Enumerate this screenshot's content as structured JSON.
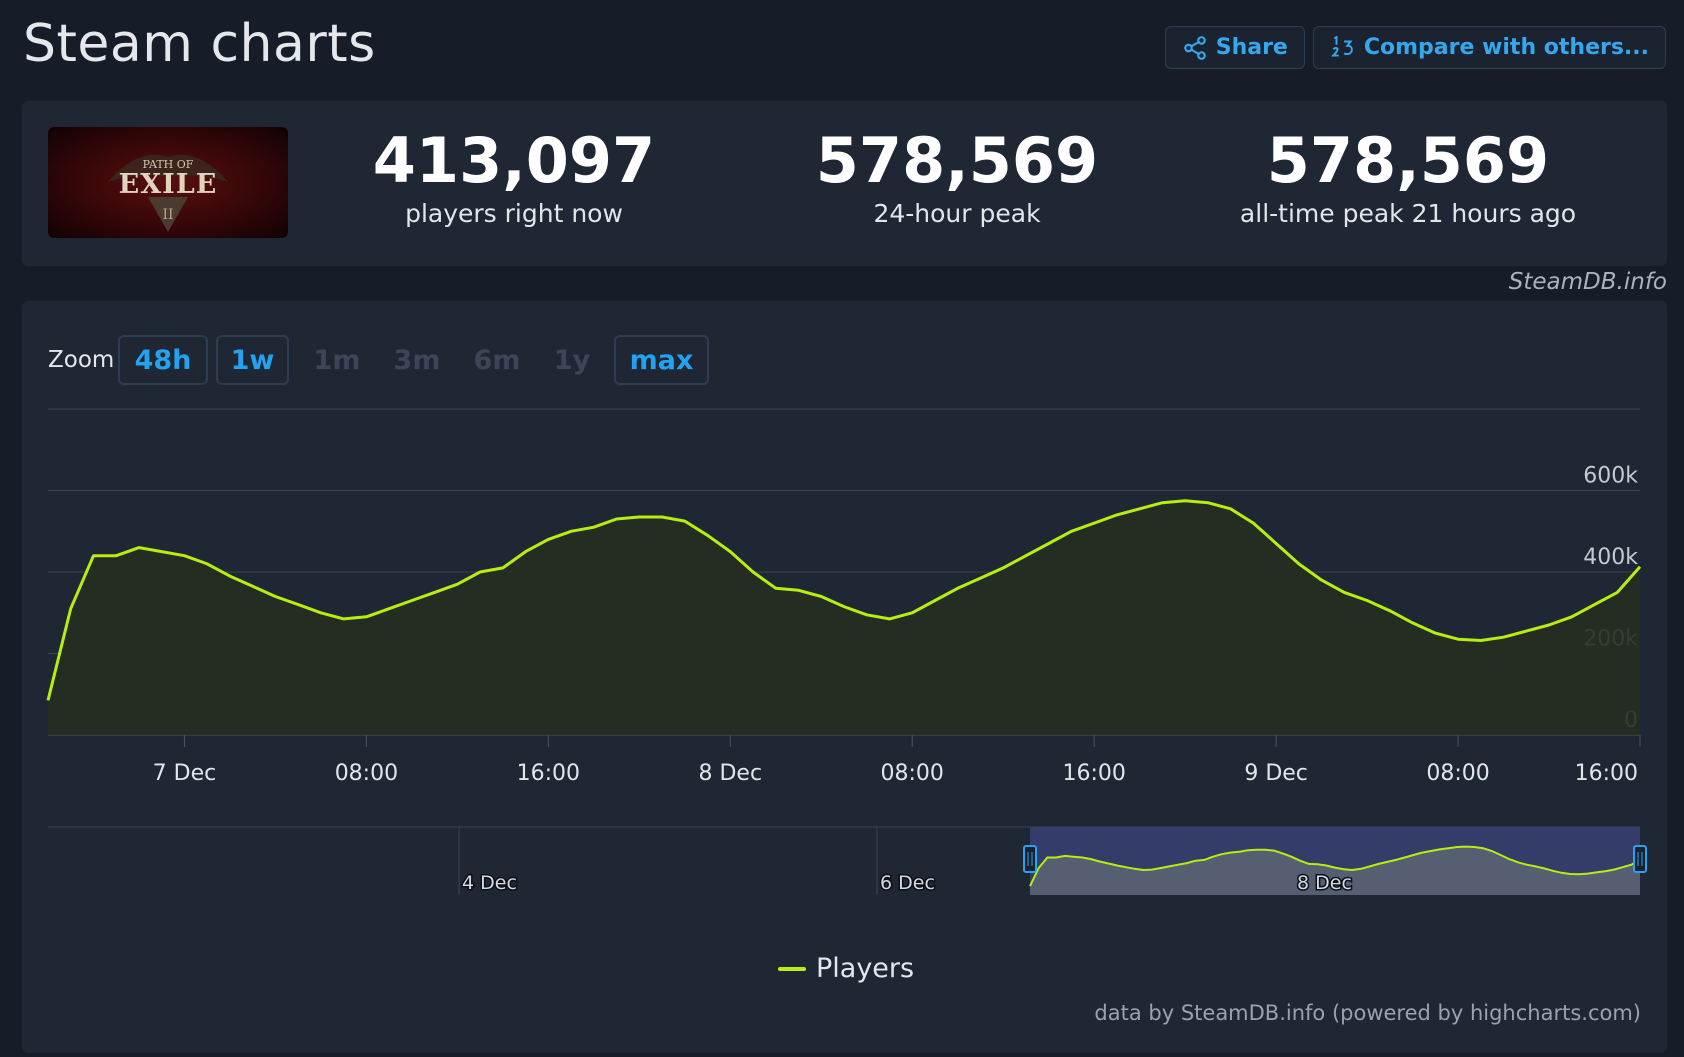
{
  "header": {
    "title": "Steam charts",
    "share_label": "Share",
    "compare_label": "Compare with others..."
  },
  "stats": [
    {
      "value": "413,097",
      "label": "players right now"
    },
    {
      "value": "578,569",
      "label": "24-hour peak"
    },
    {
      "value": "578,569",
      "label": "all-time peak 21 hours ago"
    }
  ],
  "game_logo": {
    "text_top": "PATH OF",
    "text_main": "EXILE",
    "numeral": "II"
  },
  "credit_top": "SteamDB.info",
  "zoom": {
    "label": "Zoom",
    "buttons": [
      {
        "label": "48h",
        "state": "active"
      },
      {
        "label": "1w",
        "state": "active"
      },
      {
        "label": "1m",
        "state": "disabled"
      },
      {
        "label": "3m",
        "state": "disabled"
      },
      {
        "label": "6m",
        "state": "disabled"
      },
      {
        "label": "1y",
        "state": "disabled"
      },
      {
        "label": "max",
        "state": "active"
      }
    ]
  },
  "chart_data": {
    "type": "area",
    "x": [
      0,
      1,
      2,
      3,
      4,
      5,
      6,
      7,
      8,
      9,
      10,
      11,
      12,
      13,
      14,
      15,
      16,
      17,
      18,
      19,
      20,
      21,
      22,
      23,
      24,
      25,
      26,
      27,
      28,
      29,
      30,
      31,
      32,
      33,
      34,
      35,
      36,
      37,
      38,
      39,
      40,
      41,
      42,
      43,
      44,
      45,
      46,
      47,
      48,
      49,
      50,
      51,
      52,
      53,
      54,
      55,
      56,
      57,
      58,
      59,
      60,
      61,
      62,
      63,
      64,
      65,
      66,
      67,
      68,
      69,
      70
    ],
    "x_tick_labels": [
      {
        "x": 6,
        "label": "7 Dec"
      },
      {
        "x": 14,
        "label": "08:00"
      },
      {
        "x": 22,
        "label": "16:00"
      },
      {
        "x": 30,
        "label": "8 Dec"
      },
      {
        "x": 38,
        "label": "08:00"
      },
      {
        "x": 46,
        "label": "16:00"
      },
      {
        "x": 54,
        "label": "9 Dec"
      },
      {
        "x": 62,
        "label": "08:00"
      },
      {
        "x": 70,
        "label": "16:00"
      }
    ],
    "series": [
      {
        "name": "Players",
        "color": "#b6ee10",
        "values": [
          85000,
          310000,
          440000,
          440000,
          460000,
          450000,
          440000,
          420000,
          390000,
          365000,
          340000,
          320000,
          300000,
          285000,
          290000,
          310000,
          330000,
          350000,
          370000,
          400000,
          410000,
          450000,
          480000,
          500000,
          510000,
          530000,
          535000,
          535000,
          525000,
          490000,
          450000,
          400000,
          360000,
          355000,
          340000,
          315000,
          295000,
          285000,
          300000,
          330000,
          360000,
          385000,
          410000,
          440000,
          470000,
          500000,
          520000,
          540000,
          555000,
          570000,
          575000,
          570000,
          555000,
          520000,
          470000,
          420000,
          380000,
          350000,
          330000,
          305000,
          275000,
          250000,
          235000,
          232000,
          240000,
          255000,
          270000,
          290000,
          320000,
          350000,
          413097
        ]
      }
    ],
    "ylim": [
      0,
      800000
    ],
    "y_ticks": [
      {
        "value": 0,
        "label": "0"
      },
      {
        "value": 200000,
        "label": "200k"
      },
      {
        "value": 400000,
        "label": "400k"
      },
      {
        "value": 600000,
        "label": "600k"
      }
    ],
    "grid": true,
    "legend": "bottom-center",
    "navigator": {
      "labels": [
        "4 Dec",
        "6 Dec",
        "8 Dec"
      ]
    }
  },
  "legend": {
    "label": "Players"
  },
  "credit_bottom": "data by SteamDB.info (powered by highcharts.com)"
}
